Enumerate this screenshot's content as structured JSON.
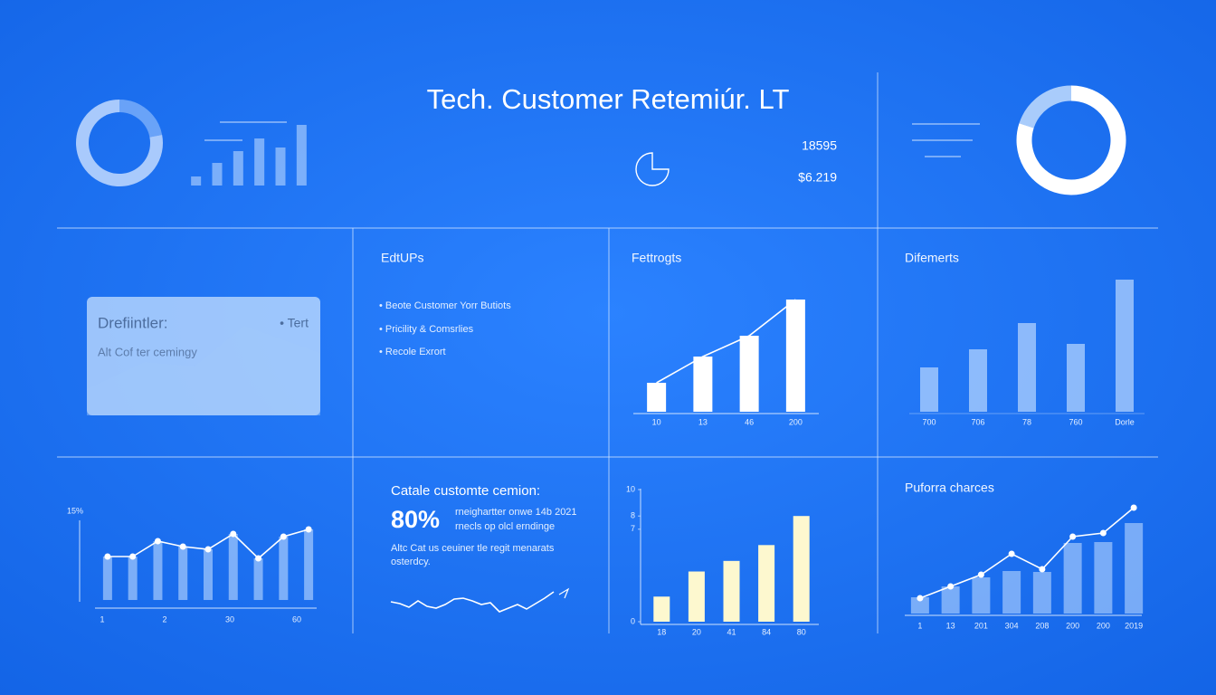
{
  "header": {
    "title": "Tech. Customer Retemiúr. LT",
    "stats": [
      "18595",
      "$6.219"
    ]
  },
  "card": {
    "title": "Drefiintler:",
    "tag": "• Tert",
    "text": "Alt Cof ter cemingy"
  },
  "list": {
    "title": "EdtUPs",
    "items": [
      "• Beote Customer Yorr Butiots",
      "• Pricility & Comsrlies",
      "• Recole Exrort"
    ]
  },
  "summary": {
    "title": "Catale customte cemion:",
    "value": "80%",
    "note": [
      "rneighartter onwe 14b 2021",
      "rnecls op olcl erndinge"
    ],
    "text": [
      "Altc Cat us ceuiner tle regit menarats",
      "osterdcy."
    ]
  },
  "chart_data": [
    {
      "type": "pie",
      "values": [
        22,
        78
      ],
      "colors": [
        "rgba(170,205,255,0.55)",
        "rgba(205,225,255,0.8)"
      ]
    },
    {
      "type": "bar",
      "values": [
        10,
        25,
        38,
        52,
        42,
        67
      ],
      "color": "rgba(185,215,255,0.6)"
    },
    {
      "type": "pie",
      "values": [
        20,
        80
      ],
      "colors": [
        "#a9ccfb",
        "#ffffff"
      ]
    },
    {
      "type": "bar",
      "title": "Fettrogts",
      "categories": [
        "10",
        "13",
        "46",
        "200"
      ],
      "values": [
        32,
        61,
        84,
        124
      ],
      "color": "#ffffff",
      "line": true
    },
    {
      "type": "bar",
      "title": "Difemerts",
      "categories": [
        "700",
        "706",
        "78",
        "760",
        "Dorle"
      ],
      "values": [
        49,
        69,
        98,
        75,
        146
      ],
      "color": "rgba(200,225,255,0.65)"
    },
    {
      "type": "bar",
      "ylabel": "15%",
      "x_labels": [
        "1",
        "2",
        "30",
        "60"
      ],
      "values": [
        48,
        48,
        65,
        59,
        56,
        73,
        46,
        70,
        78
      ],
      "color": "rgba(190,218,255,0.6)",
      "line": true
    },
    {
      "type": "line",
      "values": [
        15,
        13,
        9,
        16,
        10,
        8,
        12,
        18,
        19,
        16,
        12,
        14,
        4,
        8,
        12,
        7,
        13,
        19,
        26
      ],
      "color": "#ffffff"
    },
    {
      "type": "bar",
      "categories": [
        "18",
        "20",
        "41",
        "84",
        "80"
      ],
      "values": [
        1.9,
        3.8,
        4.6,
        5.8,
        8.0
      ],
      "ylim": [
        0,
        10
      ],
      "yticks": [
        0,
        7,
        8,
        10
      ],
      "color": "#fdf8cf"
    },
    {
      "type": "bar",
      "title": "Puforra charces",
      "categories": [
        "1",
        "13",
        "201",
        "304",
        "208",
        "200",
        "200",
        "2019"
      ],
      "values": [
        18,
        30,
        40,
        47,
        46,
        78,
        79,
        100
      ],
      "line_values": [
        17,
        30,
        43,
        66,
        49,
        85,
        89,
        117
      ],
      "color": "rgba(185,215,255,0.6)"
    }
  ]
}
